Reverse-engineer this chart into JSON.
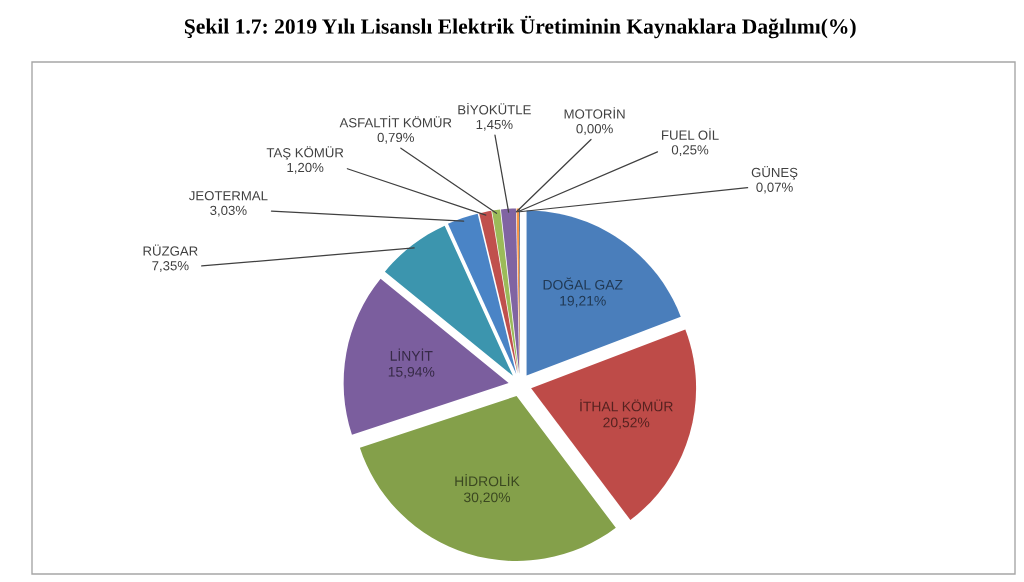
{
  "chart_data": {
    "type": "pie",
    "title": "Şekil 1.7: 2019 Yılı Lisanslı Elektrik Üretiminin Kaynaklara Dağılımı(%)",
    "categories": [
      "DOĞAL GAZ",
      "İTHAL KÖMÜR",
      "HİDROLİK",
      "LİNYİT",
      "RÜZGAR",
      "JEOTERMAL",
      "TAŞ KÖMÜR",
      "ASFALTİT KÖMÜR",
      "BİYOKÜTLE",
      "MOTORİN",
      "FUEL OİL",
      "GÜNEŞ"
    ],
    "values": [
      19.21,
      20.52,
      30.2,
      15.94,
      7.35,
      3.03,
      1.2,
      0.79,
      1.45,
      0.0,
      0.25,
      0.07
    ],
    "colors": [
      "#4a7ebb",
      "#be4b48",
      "#84a04a",
      "#7b5e9e",
      "#3c95ae",
      "#4a84c6",
      "#c0504d",
      "#9bbb59",
      "#8064a2",
      "#4bacc6",
      "#f79646",
      "#2c4d75"
    ],
    "value_labels": [
      "19,21%",
      "20,52%",
      "30,20%",
      "15,94%",
      "7,35%",
      "3,03%",
      "1,20%",
      "0,79%",
      "1,45%",
      "0,00%",
      "0,25%",
      "0,07%"
    ]
  }
}
